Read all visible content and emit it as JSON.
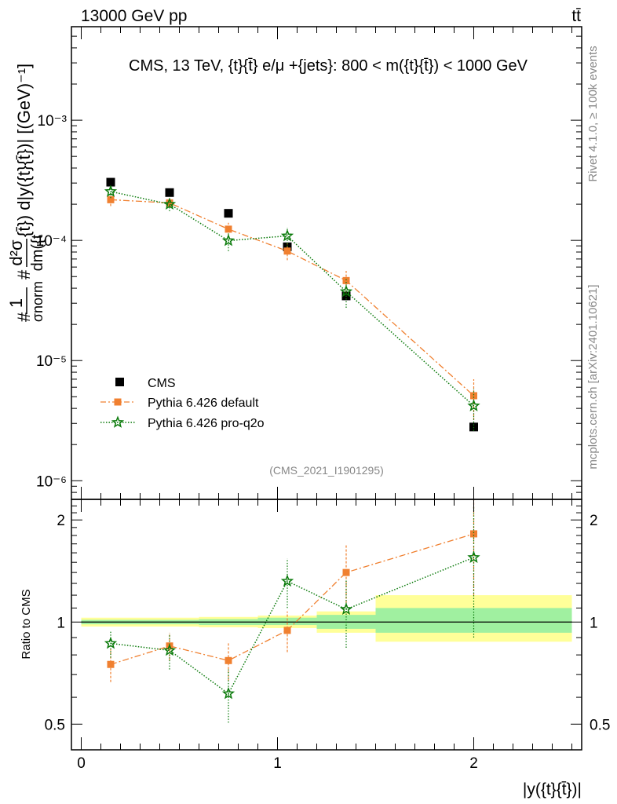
{
  "header": {
    "left": "13000 GeV pp",
    "right": "tt̄"
  },
  "side_labels": {
    "rivet": "Rivet 4.1.0, ≥ 100k events",
    "mcplots": "mcplots.cern.ch [arXiv:2401.10621]"
  },
  "colors": {
    "cms": "#000000",
    "default": "#f08030",
    "proq2o": "#0a7a0a",
    "band_inner": "#a0f0a0",
    "band_outer": "#ffff99"
  },
  "chart_data": [
    {
      "type": "scatter",
      "panel": "main",
      "title": "CMS, 13 TeV, {t}{t̄} e/μ +{jets}: 800 < m({t}{t̄}) < 1000 GeV",
      "ylabel": "#1/σnorm #d²σ/dm({t} d|y({t}{t̄})| [(GeV)⁻¹]",
      "ylabel_parts": {
        "lead": "#",
        "frac1_num": "1",
        "frac1_den": "σnorm",
        "mid": "#",
        "frac2_num": "d²σ",
        "frac2_den": "dm({t",
        "tail": "{t̄}) d|y({t}{t̄})| [(GeV)⁻¹]"
      },
      "yscale": "log",
      "ylim": [
        7e-07,
        0.006
      ],
      "yticks": [
        "10⁻³",
        "10⁻⁴",
        "10⁻⁵",
        "10⁻⁶"
      ],
      "ytick_values": [
        0.001,
        0.0001,
        1e-05,
        1e-06
      ],
      "xlim": [
        -0.05,
        2.55
      ],
      "watermark": "(CMS_2021_I1901295)",
      "legend": [
        "CMS",
        "Pythia 6.426 default",
        "Pythia 6.426 pro-q2o"
      ],
      "x": [
        0.15,
        0.45,
        0.75,
        1.05,
        1.35,
        2.0
      ],
      "series": [
        {
          "name": "CMS",
          "marker": "square",
          "values": [
            0.000305,
            0.00025,
            0.000168,
            8.85e-05,
            3.45e-05,
            2.8e-06
          ]
        },
        {
          "name": "Pythia 6.426 default",
          "marker": "square",
          "line": "dash-dot",
          "values": [
            0.000218,
            0.000205,
            0.000124,
            8.15e-05,
            4.63e-05,
            5.1e-06
          ],
          "err": [
            2.5e-05,
            2e-05,
            1.6e-05,
            1.3e-05,
            9.5e-06,
            1.9e-06
          ]
        },
        {
          "name": "Pythia 6.426 pro-q2o",
          "marker": "star",
          "line": "dotted",
          "values": [
            0.000255,
            0.0002,
            9.95e-05,
            0.000109,
            3.75e-05,
            4.2e-06
          ],
          "err": [
            3e-05,
            2.5e-05,
            1.8e-05,
            2e-05,
            1e-05,
            1.6e-06
          ]
        }
      ]
    },
    {
      "type": "line",
      "panel": "ratio",
      "ylabel": "Ratio to CMS",
      "xlabel": "|y({t}{t̄})|",
      "ylim": [
        0.42,
        2.3
      ],
      "yticks": [
        "2",
        "1",
        "0.5"
      ],
      "ytick_values": [
        2,
        1,
        0.5
      ],
      "xticks": [
        "0",
        "1",
        "2"
      ],
      "xtick_values": [
        0,
        1,
        2
      ],
      "xlim": [
        -0.05,
        2.55
      ],
      "bands": [
        {
          "x0": 0.0,
          "x1": 0.6,
          "inner": [
            0.985,
            1.015
          ],
          "outer": [
            0.97,
            1.03
          ]
        },
        {
          "x0": 0.6,
          "x1": 0.9,
          "inner": [
            0.98,
            1.02
          ],
          "outer": [
            0.965,
            1.035
          ]
        },
        {
          "x0": 0.9,
          "x1": 1.2,
          "inner": [
            0.98,
            1.03
          ],
          "outer": [
            0.96,
            1.045
          ]
        },
        {
          "x0": 1.2,
          "x1": 1.5,
          "inner": [
            0.955,
            1.05
          ],
          "outer": [
            0.93,
            1.075
          ]
        },
        {
          "x0": 1.5,
          "x1": 2.5,
          "inner": [
            0.93,
            1.1
          ],
          "outer": [
            0.875,
            1.2
          ]
        }
      ],
      "x": [
        0.15,
        0.45,
        0.75,
        1.05,
        1.35,
        2.0
      ],
      "series": [
        {
          "name": "Pythia 6.426 default",
          "marker": "square",
          "line": "dash-dot",
          "values": [
            0.75,
            0.85,
            0.77,
            0.945,
            1.4,
            1.82
          ],
          "err": [
            0.085,
            0.08,
            0.1,
            0.13,
            0.29,
            0.62
          ]
        },
        {
          "name": "Pythia 6.426 pro-q2o",
          "marker": "star",
          "line": "dotted",
          "values": [
            0.865,
            0.825,
            0.615,
            1.32,
            1.09,
            1.55
          ],
          "err": [
            0.08,
            0.1,
            0.11,
            0.22,
            0.25,
            0.65
          ]
        }
      ]
    }
  ]
}
